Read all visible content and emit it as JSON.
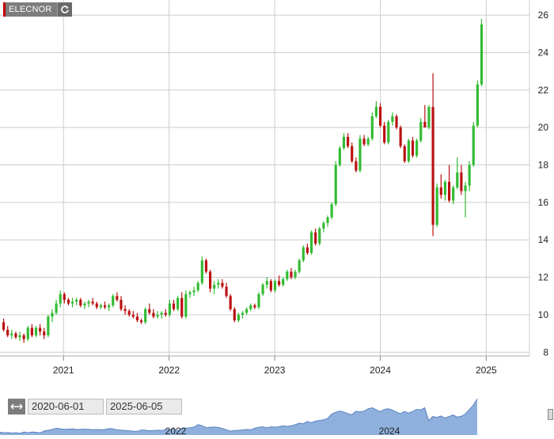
{
  "ticker": {
    "label": "ELECNOR"
  },
  "range": {
    "from": "2020-06-01",
    "to": "2025-06-05"
  },
  "navigator": {
    "labels": [
      "2022",
      "2024"
    ]
  },
  "colors": {
    "up": "#33bb33",
    "down": "#bb1111",
    "grid": "#cccccc",
    "navFill": "#8fb0dc",
    "navLine": "#5a82c0"
  },
  "chart_data": {
    "type": "candlestick",
    "title": "",
    "xlabel": "",
    "ylabel": "",
    "x_ticks": [
      "2021",
      "2022",
      "2023",
      "2024",
      "2025"
    ],
    "y_ticks": [
      8,
      10,
      12,
      14,
      16,
      18,
      20,
      22,
      24,
      26
    ],
    "ylim": [
      7.8,
      26.3
    ],
    "xlim": [
      "2020-06-01",
      "2025-06-05"
    ],
    "grid": true,
    "candles": [
      [
        "2020-06-01",
        9.6,
        9.8,
        9.1,
        9.2
      ],
      [
        "2020-06-15",
        9.2,
        9.4,
        8.8,
        8.9
      ],
      [
        "2020-06-29",
        8.9,
        9.2,
        8.7,
        9.0
      ],
      [
        "2020-07-13",
        9.0,
        9.1,
        8.7,
        8.8
      ],
      [
        "2020-07-27",
        8.8,
        9.1,
        8.6,
        8.9
      ],
      [
        "2020-08-10",
        8.9,
        9.0,
        8.5,
        8.7
      ],
      [
        "2020-08-24",
        8.7,
        9.4,
        8.6,
        9.3
      ],
      [
        "2020-09-07",
        9.3,
        9.5,
        8.8,
        8.9
      ],
      [
        "2020-09-21",
        8.9,
        9.4,
        8.8,
        9.3
      ],
      [
        "2020-10-05",
        9.3,
        9.5,
        8.9,
        9.1
      ],
      [
        "2020-10-19",
        9.1,
        9.3,
        8.7,
        8.9
      ],
      [
        "2020-11-02",
        8.9,
        10.0,
        8.8,
        9.9
      ],
      [
        "2020-11-16",
        9.9,
        10.3,
        9.6,
        10.1
      ],
      [
        "2020-11-30",
        10.1,
        10.8,
        10.0,
        10.6
      ],
      [
        "2020-12-14",
        10.6,
        11.3,
        10.4,
        11.1
      ],
      [
        "2020-12-28",
        11.1,
        11.2,
        10.6,
        10.8
      ],
      [
        "2021-01-11",
        10.8,
        10.9,
        10.5,
        10.6
      ],
      [
        "2021-01-25",
        10.6,
        10.9,
        10.4,
        10.7
      ],
      [
        "2021-02-08",
        10.7,
        10.9,
        10.5,
        10.8
      ],
      [
        "2021-02-22",
        10.8,
        10.9,
        10.4,
        10.5
      ],
      [
        "2021-03-08",
        10.5,
        10.7,
        10.3,
        10.6
      ],
      [
        "2021-03-22",
        10.6,
        10.8,
        10.4,
        10.7
      ],
      [
        "2021-04-05",
        10.7,
        10.9,
        10.5,
        10.6
      ],
      [
        "2021-04-19",
        10.6,
        10.7,
        10.3,
        10.4
      ],
      [
        "2021-05-03",
        10.4,
        10.6,
        10.3,
        10.5
      ],
      [
        "2021-05-17",
        10.5,
        10.7,
        10.3,
        10.4
      ],
      [
        "2021-05-31",
        10.4,
        10.6,
        10.2,
        10.5
      ],
      [
        "2021-06-14",
        10.5,
        11.1,
        10.4,
        11.0
      ],
      [
        "2021-06-28",
        11.0,
        11.2,
        10.7,
        10.8
      ],
      [
        "2021-07-12",
        10.8,
        11.0,
        10.2,
        10.3
      ],
      [
        "2021-07-26",
        10.3,
        10.5,
        10.0,
        10.2
      ],
      [
        "2021-08-09",
        10.2,
        10.3,
        9.9,
        10.0
      ],
      [
        "2021-08-23",
        10.0,
        10.2,
        9.8,
        9.9
      ],
      [
        "2021-09-06",
        9.9,
        10.1,
        9.6,
        9.7
      ],
      [
        "2021-09-20",
        9.7,
        9.8,
        9.5,
        9.6
      ],
      [
        "2021-10-04",
        9.6,
        10.4,
        9.5,
        10.3
      ],
      [
        "2021-10-18",
        10.3,
        10.6,
        10.0,
        10.1
      ],
      [
        "2021-11-01",
        10.1,
        10.3,
        9.8,
        9.9
      ],
      [
        "2021-11-15",
        9.9,
        10.2,
        9.8,
        10.0
      ],
      [
        "2021-11-29",
        10.0,
        10.2,
        9.8,
        10.1
      ],
      [
        "2021-12-13",
        10.1,
        10.3,
        9.9,
        10.0
      ],
      [
        "2021-12-27",
        10.0,
        10.8,
        9.9,
        10.6
      ],
      [
        "2022-01-10",
        10.6,
        10.8,
        10.2,
        10.3
      ],
      [
        "2022-01-24",
        10.3,
        11.0,
        10.2,
        10.9
      ],
      [
        "2022-02-07",
        10.9,
        11.2,
        9.8,
        9.9
      ],
      [
        "2022-02-21",
        9.9,
        11.3,
        9.8,
        11.1
      ],
      [
        "2022-03-07",
        11.1,
        11.3,
        10.9,
        11.2
      ],
      [
        "2022-03-21",
        11.2,
        11.5,
        11.0,
        11.3
      ],
      [
        "2022-04-04",
        11.3,
        11.8,
        11.2,
        11.7
      ],
      [
        "2022-04-18",
        11.7,
        13.1,
        11.6,
        12.9
      ],
      [
        "2022-05-02",
        12.9,
        13.0,
        12.2,
        12.3
      ],
      [
        "2022-05-16",
        12.3,
        12.4,
        11.2,
        11.4
      ],
      [
        "2022-05-30",
        11.4,
        11.8,
        11.1,
        11.6
      ],
      [
        "2022-06-13",
        11.6,
        11.9,
        11.4,
        11.7
      ],
      [
        "2022-06-27",
        11.7,
        11.9,
        11.4,
        11.5
      ],
      [
        "2022-07-11",
        11.5,
        11.7,
        10.9,
        11.0
      ],
      [
        "2022-07-25",
        11.0,
        11.1,
        10.2,
        10.3
      ],
      [
        "2022-08-08",
        10.3,
        10.4,
        9.6,
        9.7
      ],
      [
        "2022-08-22",
        9.7,
        10.1,
        9.6,
        10.0
      ],
      [
        "2022-09-05",
        10.0,
        10.2,
        9.8,
        10.1
      ],
      [
        "2022-09-19",
        10.1,
        10.4,
        10.0,
        10.3
      ],
      [
        "2022-10-03",
        10.3,
        10.6,
        10.2,
        10.5
      ],
      [
        "2022-10-17",
        10.5,
        10.6,
        10.3,
        10.4
      ],
      [
        "2022-10-31",
        10.4,
        11.2,
        10.3,
        11.1
      ],
      [
        "2022-11-14",
        11.1,
        11.7,
        11.0,
        11.6
      ],
      [
        "2022-11-28",
        11.6,
        12.0,
        11.4,
        11.8
      ],
      [
        "2022-12-12",
        11.8,
        11.9,
        11.2,
        11.3
      ],
      [
        "2022-12-26",
        11.3,
        11.9,
        11.2,
        11.8
      ],
      [
        "2023-01-09",
        11.8,
        12.1,
        11.5,
        11.6
      ],
      [
        "2023-01-23",
        11.6,
        12.0,
        11.5,
        11.9
      ],
      [
        "2023-02-06",
        11.9,
        12.4,
        11.8,
        12.3
      ],
      [
        "2023-02-20",
        12.3,
        12.5,
        11.9,
        12.0
      ],
      [
        "2023-03-06",
        12.0,
        12.4,
        11.9,
        12.3
      ],
      [
        "2023-03-20",
        12.3,
        13.0,
        12.2,
        12.9
      ],
      [
        "2023-04-03",
        12.9,
        13.7,
        12.8,
        13.6
      ],
      [
        "2023-04-17",
        13.6,
        13.8,
        13.2,
        13.3
      ],
      [
        "2023-05-01",
        13.3,
        14.5,
        13.2,
        14.4
      ],
      [
        "2023-05-15",
        14.4,
        14.6,
        13.7,
        13.8
      ],
      [
        "2023-05-29",
        13.8,
        14.7,
        13.7,
        14.6
      ],
      [
        "2023-06-12",
        14.6,
        15.0,
        14.4,
        14.9
      ],
      [
        "2023-06-26",
        14.9,
        15.3,
        14.7,
        15.2
      ],
      [
        "2023-07-10",
        15.2,
        16.0,
        15.1,
        15.9
      ],
      [
        "2023-07-24",
        15.9,
        18.2,
        15.8,
        18.0
      ],
      [
        "2023-08-07",
        18.0,
        19.0,
        17.9,
        18.9
      ],
      [
        "2023-08-21",
        18.9,
        19.7,
        18.8,
        19.5
      ],
      [
        "2023-09-04",
        19.5,
        19.7,
        18.9,
        19.0
      ],
      [
        "2023-09-18",
        19.0,
        19.2,
        18.1,
        18.2
      ],
      [
        "2023-10-02",
        18.2,
        18.4,
        17.6,
        17.7
      ],
      [
        "2023-10-16",
        17.7,
        19.6,
        17.6,
        19.4
      ],
      [
        "2023-10-30",
        19.4,
        19.6,
        19.0,
        19.1
      ],
      [
        "2023-11-13",
        19.1,
        19.5,
        19.0,
        19.4
      ],
      [
        "2023-11-27",
        19.4,
        20.8,
        19.3,
        20.6
      ],
      [
        "2023-12-11",
        20.6,
        21.4,
        20.5,
        21.1
      ],
      [
        "2023-12-25",
        21.1,
        21.3,
        20.0,
        20.1
      ],
      [
        "2024-01-08",
        20.1,
        20.3,
        19.1,
        19.2
      ],
      [
        "2024-01-22",
        19.2,
        20.4,
        19.1,
        20.3
      ],
      [
        "2024-02-05",
        20.3,
        20.8,
        20.1,
        20.6
      ],
      [
        "2024-02-19",
        20.6,
        20.7,
        19.9,
        20.0
      ],
      [
        "2024-03-04",
        20.0,
        20.1,
        18.9,
        19.0
      ],
      [
        "2024-03-18",
        19.0,
        19.1,
        18.1,
        18.2
      ],
      [
        "2024-04-01",
        18.2,
        19.4,
        18.1,
        19.3
      ],
      [
        "2024-04-15",
        19.3,
        19.5,
        18.4,
        18.5
      ],
      [
        "2024-04-29",
        18.5,
        19.4,
        18.4,
        19.3
      ],
      [
        "2024-05-13",
        19.3,
        20.5,
        19.2,
        20.3
      ],
      [
        "2024-05-27",
        20.3,
        21.2,
        20.1,
        20.0
      ],
      [
        "2024-06-10",
        20.0,
        21.2,
        19.9,
        21.1
      ],
      [
        "2024-06-24",
        21.1,
        22.9,
        14.2,
        14.8
      ],
      [
        "2024-07-08",
        14.8,
        17.0,
        14.7,
        16.8
      ],
      [
        "2024-07-22",
        16.8,
        17.5,
        16.2,
        16.4
      ],
      [
        "2024-08-05",
        16.4,
        17.2,
        16.1,
        17.1
      ],
      [
        "2024-08-19",
        17.1,
        18.0,
        16.0,
        16.1
      ],
      [
        "2024-09-02",
        16.1,
        16.9,
        15.9,
        16.8
      ],
      [
        "2024-09-16",
        16.8,
        18.4,
        16.7,
        17.6
      ],
      [
        "2024-09-30",
        17.6,
        18.0,
        16.4,
        16.6
      ],
      [
        "2024-10-14",
        16.6,
        17.1,
        15.2,
        16.9
      ],
      [
        "2024-10-28",
        16.9,
        18.2,
        16.6,
        18.0
      ],
      [
        "2024-11-11",
        18.0,
        20.3,
        17.9,
        20.1
      ],
      [
        "2024-11-25",
        20.1,
        22.5,
        20.0,
        22.3
      ],
      [
        "2024-12-09",
        22.3,
        25.8,
        22.2,
        25.5
      ]
    ]
  }
}
